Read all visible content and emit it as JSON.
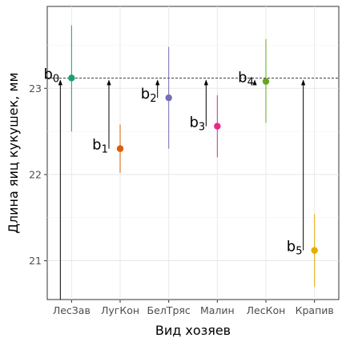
{
  "chart_data": {
    "type": "scatter",
    "title": "",
    "xlabel": "Вид хозяев",
    "ylabel": "Длина яиц кукушек, мм",
    "ylim": [
      20.55,
      23.95
    ],
    "yticks": [
      21,
      22,
      23
    ],
    "reference_line": 23.12,
    "grid": true,
    "legend": "none",
    "categories": [
      "ЛесЗав",
      "ЛугКон",
      "БелТряс",
      "Малин",
      "ЛесКон",
      "Крапив"
    ],
    "points": [
      {
        "category": "ЛесЗав",
        "mean": 23.12,
        "lower": 22.5,
        "upper": 23.73,
        "color": "#1b9e77",
        "label_base": "b",
        "label_sub": "0"
      },
      {
        "category": "ЛугКон",
        "mean": 22.3,
        "lower": 22.02,
        "upper": 22.58,
        "color": "#d95f02",
        "label_base": "b",
        "label_sub": "1"
      },
      {
        "category": "БелТряс",
        "mean": 22.89,
        "lower": 22.3,
        "upper": 23.48,
        "color": "#7570b3",
        "label_base": "b",
        "label_sub": "2"
      },
      {
        "category": "Малин",
        "mean": 22.56,
        "lower": 22.2,
        "upper": 22.92,
        "color": "#e7298a",
        "label_base": "b",
        "label_sub": "3"
      },
      {
        "category": "ЛесКон",
        "mean": 23.08,
        "lower": 22.6,
        "upper": 23.57,
        "color": "#66a61e",
        "label_base": "b",
        "label_sub": "4"
      },
      {
        "category": "Крапив",
        "mean": 21.12,
        "lower": 20.7,
        "upper": 21.54,
        "color": "#e6ab02",
        "label_base": "b",
        "label_sub": "5"
      }
    ]
  }
}
